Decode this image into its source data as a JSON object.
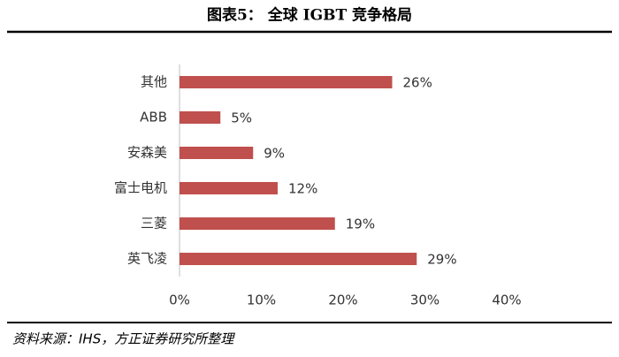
{
  "chart_data": {
    "type": "barh",
    "title": "图表5：  全球 IGBT 竞争格局",
    "source": "资料来源：IHS，方正证券研究所整理",
    "categories": [
      "其他",
      "ABB",
      "安森美",
      "富士电机",
      "三菱",
      "英飞凌"
    ],
    "values": [
      26,
      5,
      9,
      12,
      19,
      29
    ],
    "value_labels": [
      "26%",
      "5%",
      "9%",
      "12%",
      "19%",
      "29%"
    ],
    "color": "#c0504d",
    "xlim": [
      0,
      40
    ],
    "xticks": [
      {
        "value": 0,
        "label": "0%"
      },
      {
        "value": 10,
        "label": "10%"
      },
      {
        "value": 20,
        "label": "20%"
      },
      {
        "value": 30,
        "label": "30%"
      },
      {
        "value": 40,
        "label": "40%"
      }
    ]
  }
}
